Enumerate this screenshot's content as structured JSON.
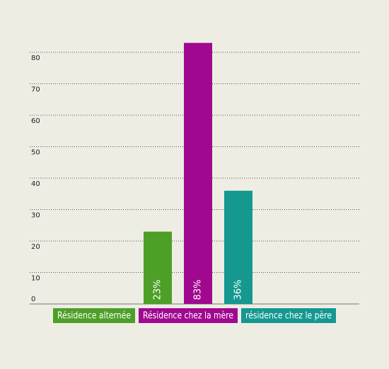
{
  "chart_data": {
    "type": "bar",
    "categories": [
      null
    ],
    "series": [
      {
        "name": "Résidence alternée",
        "color": "#4d9f27",
        "values": [
          23
        ],
        "value_labels": [
          "23%"
        ]
      },
      {
        "name": "Résidence chez la mère",
        "color": "#a0098f",
        "values": [
          83
        ],
        "value_labels": [
          "83%"
        ]
      },
      {
        "name": "résidence chez le père",
        "color": "#149890",
        "values": [
          36
        ],
        "value_labels": [
          "36%"
        ]
      }
    ],
    "ylim": [
      0,
      80
    ],
    "yticks": [
      0,
      10,
      20,
      30,
      40,
      50,
      60,
      70,
      80
    ],
    "grid": true
  }
}
